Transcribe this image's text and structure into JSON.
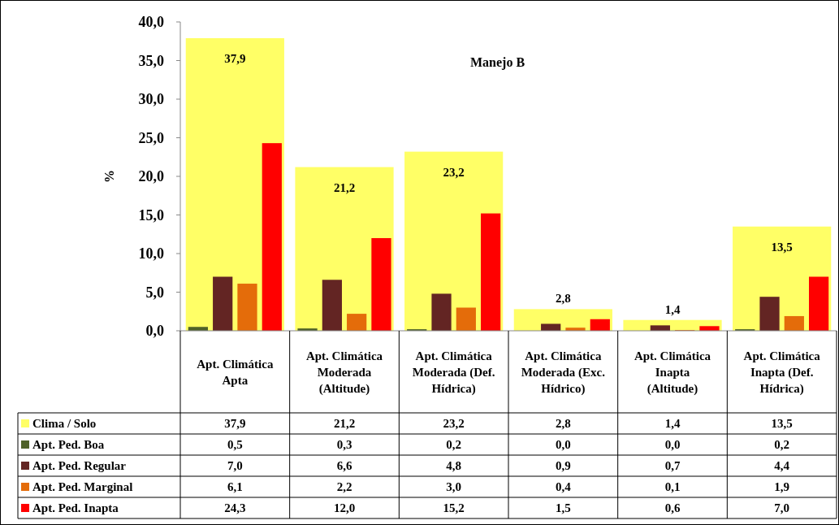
{
  "chart_data": {
    "type": "bar",
    "title": "Manejo B",
    "ylabel": "%",
    "categories": [
      "Apt. Climática Apta",
      "Apt. Climática Moderada (Altitude)",
      "Apt. Climática Moderada (Def. Hídrica)",
      "Apt. Climática Moderada (Exc. Hídrico)",
      "Apt. Climática Inapta (Altitude)",
      "Apt. Climática Inapta (Def. Hídrica)"
    ],
    "series": [
      {
        "name": "Clima / Solo",
        "color": "#ffff66",
        "values": [
          37.9,
          21.2,
          23.2,
          2.8,
          1.4,
          13.5
        ],
        "value_labels": [
          "37,9",
          "21,2",
          "23,2",
          "2,8",
          "1,4",
          "13,5"
        ]
      },
      {
        "name": "Apt. Ped. Boa",
        "color": "#4f6228",
        "values": [
          0.5,
          0.3,
          0.2,
          0.0,
          0.0,
          0.2
        ],
        "value_labels": [
          "0,5",
          "0,3",
          "0,2",
          "0,0",
          "0,0",
          "0,2"
        ]
      },
      {
        "name": "Apt. Ped. Regular",
        "color": "#632523",
        "values": [
          7.0,
          6.6,
          4.8,
          0.9,
          0.7,
          4.4
        ],
        "value_labels": [
          "7,0",
          "6,6",
          "4,8",
          "0,9",
          "0,7",
          "4,4"
        ]
      },
      {
        "name": "Apt. Ped. Marginal",
        "color": "#e46c0a",
        "values": [
          6.1,
          2.2,
          3.0,
          0.4,
          0.1,
          1.9
        ],
        "value_labels": [
          "6,1",
          "2,2",
          "3,0",
          "0,4",
          "0,1",
          "1,9"
        ]
      },
      {
        "name": "Apt. Ped. Inapta",
        "color": "#ff0000",
        "values": [
          24.3,
          12.0,
          15.2,
          1.5,
          0.6,
          7.0
        ],
        "value_labels": [
          "24,3",
          "12,0",
          "15,2",
          "1,5",
          "0,6",
          "7,0"
        ]
      }
    ],
    "ylim": [
      0,
      40
    ],
    "yticks": [
      {
        "value": 0,
        "label": "0,0"
      },
      {
        "value": 5,
        "label": "5,0"
      },
      {
        "value": 10,
        "label": "10,0"
      },
      {
        "value": 15,
        "label": "15,0"
      },
      {
        "value": 20,
        "label": "20,0"
      },
      {
        "value": 25,
        "label": "25,0"
      },
      {
        "value": 30,
        "label": "30,0"
      },
      {
        "value": 35,
        "label": "35,0"
      },
      {
        "value": 40,
        "label": "40,0"
      }
    ],
    "legend": "bottom",
    "grid": false
  }
}
